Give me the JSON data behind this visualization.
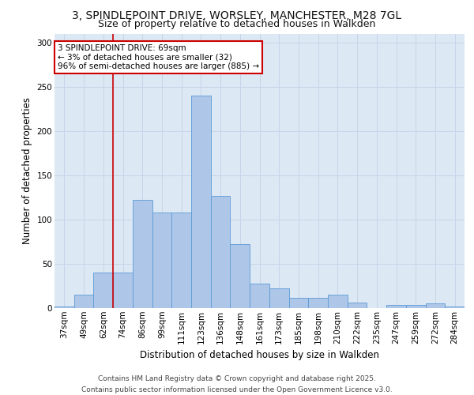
{
  "title_line1": "3, SPINDLEPOINT DRIVE, WORSLEY, MANCHESTER, M28 7GL",
  "title_line2": "Size of property relative to detached houses in Walkden",
  "xlabel": "Distribution of detached houses by size in Walkden",
  "ylabel": "Number of detached properties",
  "categories": [
    "37sqm",
    "49sqm",
    "62sqm",
    "74sqm",
    "86sqm",
    "99sqm",
    "111sqm",
    "123sqm",
    "136sqm",
    "148sqm",
    "161sqm",
    "173sqm",
    "185sqm",
    "198sqm",
    "210sqm",
    "222sqm",
    "235sqm",
    "247sqm",
    "259sqm",
    "272sqm",
    "284sqm"
  ],
  "values": [
    2,
    15,
    40,
    40,
    122,
    108,
    108,
    240,
    127,
    72,
    28,
    22,
    12,
    12,
    15,
    6,
    0,
    4,
    4,
    5,
    2
  ],
  "bar_color": "#aec6e8",
  "bar_edge_color": "#5b9bd5",
  "grid_color": "#c8d4e8",
  "background_color": "#dde8f5",
  "vline_x_index": 2.5,
  "vline_color": "#cc0000",
  "annotation_text": "3 SPINDLEPOINT DRIVE: 69sqm\n← 3% of detached houses are smaller (32)\n96% of semi-detached houses are larger (885) →",
  "annotation_box_color": "#ffffff",
  "annotation_box_edge": "#cc0000",
  "ylim": [
    0,
    310
  ],
  "yticks": [
    0,
    50,
    100,
    150,
    200,
    250,
    300
  ],
  "footer_line1": "Contains HM Land Registry data © Crown copyright and database right 2025.",
  "footer_line2": "Contains public sector information licensed under the Open Government Licence v3.0.",
  "title_fontsize": 10,
  "subtitle_fontsize": 9,
  "tick_fontsize": 7.5,
  "label_fontsize": 8.5,
  "footer_fontsize": 6.5,
  "ann_fontsize": 7.5
}
